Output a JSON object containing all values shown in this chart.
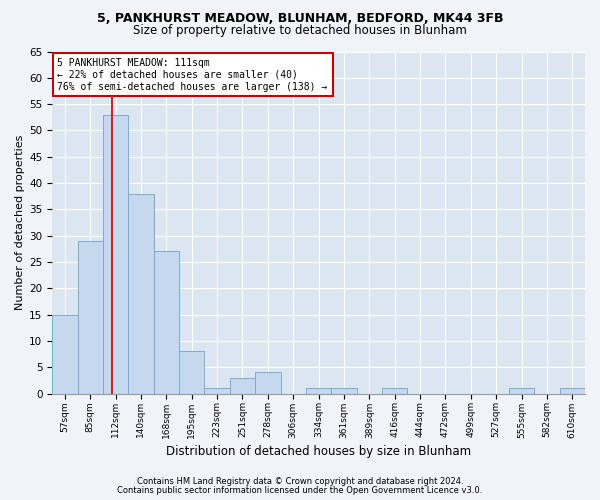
{
  "title1": "5, PANKHURST MEADOW, BLUNHAM, BEDFORD, MK44 3FB",
  "title2": "Size of property relative to detached houses in Blunham",
  "xlabel": "Distribution of detached houses by size in Blunham",
  "ylabel": "Number of detached properties",
  "categories": [
    "57sqm",
    "85sqm",
    "112sqm",
    "140sqm",
    "168sqm",
    "195sqm",
    "223sqm",
    "251sqm",
    "278sqm",
    "306sqm",
    "334sqm",
    "361sqm",
    "389sqm",
    "416sqm",
    "444sqm",
    "472sqm",
    "499sqm",
    "527sqm",
    "555sqm",
    "582sqm",
    "610sqm"
  ],
  "values": [
    15,
    29,
    53,
    38,
    27,
    8,
    1,
    3,
    4,
    0,
    1,
    1,
    0,
    1,
    0,
    0,
    0,
    0,
    1,
    0,
    1
  ],
  "bar_color": "#c5d8ee",
  "bar_edge_color": "#7aadd4",
  "background_color": "#dce6f0",
  "grid_color": "#ffffff",
  "fig_background": "#f0f4f8",
  "vline_color": "#cc0000",
  "vline_x": 1.85,
  "annotation_text": "5 PANKHURST MEADOW: 111sqm\n← 22% of detached houses are smaller (40)\n76% of semi-detached houses are larger (138) →",
  "annotation_box_color": "#ffffff",
  "annotation_box_edge": "#cc0000",
  "footer1": "Contains HM Land Registry data © Crown copyright and database right 2024.",
  "footer2": "Contains public sector information licensed under the Open Government Licence v3.0.",
  "ylim": [
    0,
    65
  ],
  "yticks": [
    0,
    5,
    10,
    15,
    20,
    25,
    30,
    35,
    40,
    45,
    50,
    55,
    60,
    65
  ]
}
